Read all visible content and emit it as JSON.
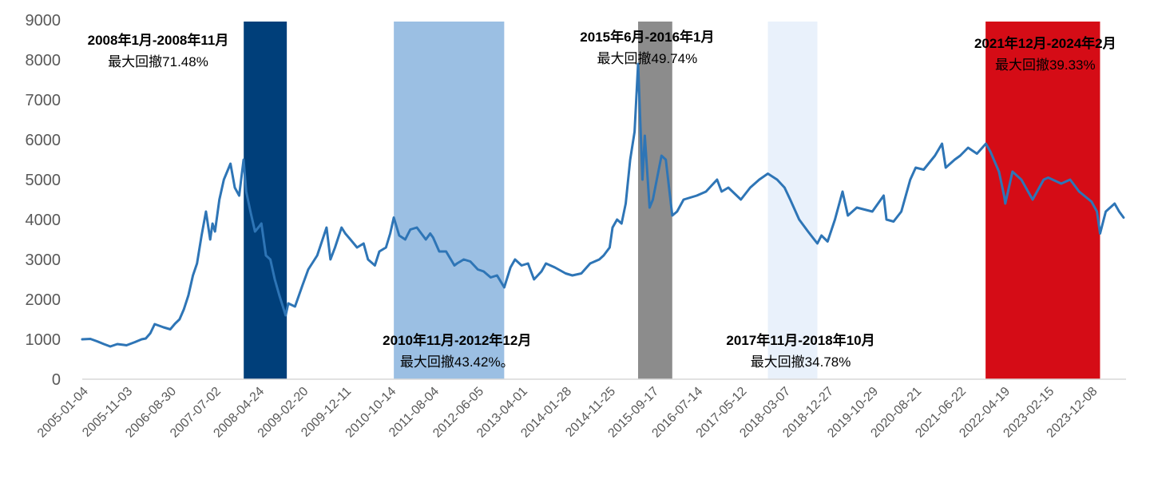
{
  "chart_data": {
    "type": "line",
    "title": "",
    "xlabel": "",
    "ylabel": "",
    "ylim": [
      0,
      9000
    ],
    "yticks": [
      0,
      1000,
      2000,
      3000,
      4000,
      5000,
      6000,
      7000,
      8000,
      9000
    ],
    "grid": false,
    "legend": "none",
    "x_tick_labels": [
      "2005-01-04",
      "2005-11-03",
      "2006-08-30",
      "2007-07-02",
      "2008-04-24",
      "2009-02-20",
      "2009-12-11",
      "2010-10-14",
      "2011-08-04",
      "2012-06-05",
      "2013-04-01",
      "2014-01-28",
      "2014-11-25",
      "2015-09-17",
      "2016-07-14",
      "2017-05-12",
      "2018-03-07",
      "2018-12-27",
      "2019-10-29",
      "2020-08-21",
      "2021-06-22",
      "2022-04-19",
      "2023-02-15",
      "2023-12-08"
    ],
    "series": [
      {
        "color": "#2e75b6",
        "points": [
          [
            "2005-01-04",
            1000
          ],
          [
            "2005-03-01",
            1010
          ],
          [
            "2005-04-15",
            950
          ],
          [
            "2005-06-01",
            880
          ],
          [
            "2005-07-15",
            820
          ],
          [
            "2005-09-01",
            880
          ],
          [
            "2005-10-15",
            860
          ],
          [
            "2005-11-03",
            850
          ],
          [
            "2005-12-31",
            930
          ],
          [
            "2006-02-15",
            1000
          ],
          [
            "2006-03-15",
            1020
          ],
          [
            "2006-04-15",
            1150
          ],
          [
            "2006-05-15",
            1380
          ],
          [
            "2006-06-15",
            1340
          ],
          [
            "2006-07-15",
            1300
          ],
          [
            "2006-08-30",
            1250
          ],
          [
            "2006-10-01",
            1390
          ],
          [
            "2006-11-01",
            1500
          ],
          [
            "2006-12-01",
            1750
          ],
          [
            "2007-01-01",
            2100
          ],
          [
            "2007-02-01",
            2600
          ],
          [
            "2007-03-01",
            2900
          ],
          [
            "2007-04-01",
            3600
          ],
          [
            "2007-05-01",
            4200
          ],
          [
            "2007-05-30",
            3500
          ],
          [
            "2007-06-15",
            3900
          ],
          [
            "2007-07-02",
            3700
          ],
          [
            "2007-08-01",
            4500
          ],
          [
            "2007-09-01",
            5000
          ],
          [
            "2007-10-16",
            5400
          ],
          [
            "2007-11-15",
            4800
          ],
          [
            "2007-12-15",
            4600
          ],
          [
            "2008-01-14",
            5500
          ],
          [
            "2008-02-01",
            4700
          ],
          [
            "2008-03-01",
            4200
          ],
          [
            "2008-04-01",
            3700
          ],
          [
            "2008-04-24",
            3800
          ],
          [
            "2008-05-15",
            3900
          ],
          [
            "2008-06-15",
            3100
          ],
          [
            "2008-07-15",
            3000
          ],
          [
            "2008-08-15",
            2500
          ],
          [
            "2008-09-15",
            2100
          ],
          [
            "2008-10-28",
            1600
          ],
          [
            "2008-11-15",
            1900
          ],
          [
            "2008-12-31",
            1820
          ],
          [
            "2009-02-20",
            2350
          ],
          [
            "2009-04-01",
            2750
          ],
          [
            "2009-06-01",
            3100
          ],
          [
            "2009-08-04",
            3800
          ],
          [
            "2009-08-31",
            3000
          ],
          [
            "2009-10-01",
            3300
          ],
          [
            "2009-11-15",
            3800
          ],
          [
            "2009-12-11",
            3650
          ],
          [
            "2010-01-15",
            3500
          ],
          [
            "2010-03-01",
            3300
          ],
          [
            "2010-04-15",
            3400
          ],
          [
            "2010-05-15",
            3000
          ],
          [
            "2010-07-01",
            2850
          ],
          [
            "2010-08-01",
            3200
          ],
          [
            "2010-09-15",
            3300
          ],
          [
            "2010-10-14",
            3650
          ],
          [
            "2010-11-08",
            4050
          ],
          [
            "2010-12-15",
            3600
          ],
          [
            "2011-01-25",
            3500
          ],
          [
            "2011-03-01",
            3750
          ],
          [
            "2011-04-15",
            3800
          ],
          [
            "2011-06-15",
            3500
          ],
          [
            "2011-07-15",
            3650
          ],
          [
            "2011-08-04",
            3550
          ],
          [
            "2011-09-15",
            3200
          ],
          [
            "2011-11-01",
            3200
          ],
          [
            "2011-12-28",
            2850
          ],
          [
            "2012-01-15",
            2900
          ],
          [
            "2012-03-01",
            3000
          ],
          [
            "2012-04-15",
            2950
          ],
          [
            "2012-06-05",
            2750
          ],
          [
            "2012-07-15",
            2700
          ],
          [
            "2012-09-01",
            2550
          ],
          [
            "2012-10-15",
            2600
          ],
          [
            "2012-12-03",
            2300
          ],
          [
            "2013-01-15",
            2800
          ],
          [
            "2013-02-15",
            3000
          ],
          [
            "2013-04-01",
            2850
          ],
          [
            "2013-05-15",
            2900
          ],
          [
            "2013-06-25",
            2500
          ],
          [
            "2013-08-15",
            2700
          ],
          [
            "2013-09-15",
            2900
          ],
          [
            "2013-11-15",
            2800
          ],
          [
            "2014-01-28",
            2650
          ],
          [
            "2014-03-15",
            2600
          ],
          [
            "2014-05-15",
            2650
          ],
          [
            "2014-07-15",
            2900
          ],
          [
            "2014-09-15",
            3000
          ],
          [
            "2014-10-15",
            3100
          ],
          [
            "2014-11-25",
            3300
          ],
          [
            "2014-12-15",
            3800
          ],
          [
            "2015-01-15",
            4000
          ],
          [
            "2015-02-15",
            3900
          ],
          [
            "2015-03-15",
            4400
          ],
          [
            "2015-04-15",
            5500
          ],
          [
            "2015-05-15",
            6200
          ],
          [
            "2015-06-08",
            7900
          ],
          [
            "2015-07-08",
            5000
          ],
          [
            "2015-07-24",
            6100
          ],
          [
            "2015-08-26",
            4300
          ],
          [
            "2015-09-17",
            4500
          ],
          [
            "2015-11-15",
            5600
          ],
          [
            "2015-12-15",
            5500
          ],
          [
            "2016-01-28",
            4100
          ],
          [
            "2016-03-01",
            4200
          ],
          [
            "2016-04-15",
            4500
          ],
          [
            "2016-07-14",
            4600
          ],
          [
            "2016-09-15",
            4700
          ],
          [
            "2016-11-30",
            5000
          ],
          [
            "2016-12-31",
            4700
          ],
          [
            "2017-02-15",
            4800
          ],
          [
            "2017-05-12",
            4500
          ],
          [
            "2017-07-15",
            4800
          ],
          [
            "2017-09-15",
            5000
          ],
          [
            "2017-11-13",
            5150
          ],
          [
            "2018-01-15",
            5000
          ],
          [
            "2018-03-07",
            4800
          ],
          [
            "2018-04-15",
            4500
          ],
          [
            "2018-06-15",
            4000
          ],
          [
            "2018-08-15",
            3700
          ],
          [
            "2018-10-18",
            3400
          ],
          [
            "2018-11-15",
            3600
          ],
          [
            "2018-12-27",
            3450
          ],
          [
            "2019-02-15",
            4000
          ],
          [
            "2019-04-08",
            4700
          ],
          [
            "2019-05-15",
            4100
          ],
          [
            "2019-07-15",
            4300
          ],
          [
            "2019-10-29",
            4200
          ],
          [
            "2020-01-15",
            4600
          ],
          [
            "2020-02-03",
            4000
          ],
          [
            "2020-03-23",
            3950
          ],
          [
            "2020-05-15",
            4200
          ],
          [
            "2020-07-15",
            5000
          ],
          [
            "2020-08-21",
            5300
          ],
          [
            "2020-10-15",
            5250
          ],
          [
            "2020-12-31",
            5600
          ],
          [
            "2021-02-18",
            5900
          ],
          [
            "2021-03-15",
            5300
          ],
          [
            "2021-05-15",
            5500
          ],
          [
            "2021-06-22",
            5600
          ],
          [
            "2021-08-15",
            5800
          ],
          [
            "2021-10-15",
            5650
          ],
          [
            "2021-12-15",
            5900
          ],
          [
            "2022-01-15",
            5700
          ],
          [
            "2022-03-15",
            5200
          ],
          [
            "2022-04-19",
            4600
          ],
          [
            "2022-04-27",
            4400
          ],
          [
            "2022-06-15",
            5200
          ],
          [
            "2022-08-15",
            5000
          ],
          [
            "2022-10-31",
            4500
          ],
          [
            "2023-01-15",
            5000
          ],
          [
            "2023-02-15",
            5050
          ],
          [
            "2023-05-15",
            4900
          ],
          [
            "2023-07-15",
            5000
          ],
          [
            "2023-09-15",
            4700
          ],
          [
            "2023-12-08",
            4450
          ],
          [
            "2024-01-15",
            4200
          ],
          [
            "2024-02-05",
            3650
          ],
          [
            "2024-03-15",
            4200
          ],
          [
            "2024-05-15",
            4400
          ],
          [
            "2024-06-15",
            4200
          ],
          [
            "2024-07-15",
            4050
          ]
        ]
      }
    ],
    "shaded_periods": [
      {
        "start": "2008-01-15",
        "end": "2008-11-05",
        "color": "#003f7a",
        "label_period": "2008年1月-2008年11月",
        "label_drawdown": "最大回撤71.48%",
        "label_position": "top-left"
      },
      {
        "start": "2010-11-08",
        "end": "2012-12-03",
        "color": "#9bbfe3",
        "label_period": "2010年11月-2012年12月",
        "label_drawdown": "最大回撤43.42%。",
        "label_position": "bottom"
      },
      {
        "start": "2015-06-08",
        "end": "2016-01-28",
        "color": "#8c8c8c",
        "label_period": "2015年6月-2016年1月",
        "label_drawdown": "最大回撤49.74%",
        "label_position": "top"
      },
      {
        "start": "2017-11-13",
        "end": "2018-10-18",
        "color": "#e9f1fb",
        "label_period": "2017年11月-2018年10月",
        "label_drawdown": "最大回撤34.78%",
        "label_position": "bottom"
      },
      {
        "start": "2021-12-13",
        "end": "2024-02-05",
        "color": "#d50c16",
        "label_period": "2021年12月-2024年2月",
        "label_drawdown": "最大回撤39.33%",
        "label_position": "top-right"
      }
    ]
  }
}
